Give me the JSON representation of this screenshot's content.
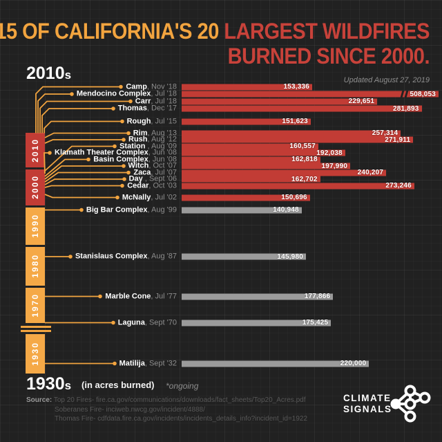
{
  "header": {
    "title_yellow": "15 OF CALIFORNIA'S 20",
    "title_red_line1": "LARGEST WILDFIRES",
    "title_red_line2": "BURNED SINCE 2000.",
    "updated": "Updated August 27, 2019"
  },
  "era": {
    "top": {
      "text": "2010",
      "suffix": "s"
    },
    "bottom": {
      "text": "1930",
      "suffix": "s"
    }
  },
  "axis_note": "(in acres burned)",
  "ongoing_note": "*ongoing",
  "timeline_decades": [
    {
      "label": "2010",
      "color": "#c23c35"
    },
    {
      "label": "2000",
      "color": "#c23c35"
    },
    {
      "label": "1990",
      "color": "#f5a947"
    },
    {
      "label": "1980",
      "color": "#f5a947"
    },
    {
      "label": "1970",
      "color": "#f5a947"
    },
    {
      "label": "1930",
      "color": "#f5a947"
    }
  ],
  "chart_data": {
    "type": "bar",
    "orientation": "horizontal",
    "title": "15 of California's 20 largest wildfires burned since 2000.",
    "unit": "acres burned",
    "legend": {
      "since_2000_color": "#c23c35",
      "before_2000_color": "#9b9b9b",
      "accent_color": "#f2a43f"
    },
    "fires": [
      {
        "name": "Camp",
        "date": "Nov '18",
        "acres": 153336,
        "since_2000": true
      },
      {
        "name": "Mendocino Complex",
        "date": "Jul '18",
        "acres": 508053,
        "since_2000": true,
        "axis_break": true
      },
      {
        "name": "Carr",
        "date": "Jul '18",
        "acres": 229651,
        "since_2000": true
      },
      {
        "name": "Thomas",
        "date": "Dec '17",
        "acres": 281893,
        "since_2000": true
      },
      {
        "name": "Rough",
        "date": "Jul '15",
        "acres": 151623,
        "since_2000": true
      },
      {
        "name": "Rim",
        "date": "Aug '13",
        "acres": 257314,
        "since_2000": true
      },
      {
        "name": "Rush",
        "date": "Aug '12",
        "acres": 271911,
        "since_2000": true
      },
      {
        "name": "Station ",
        "date": "Aug '09",
        "acres": 160557,
        "since_2000": true
      },
      {
        "name": "Klamath Theater Complex",
        "date": "Jun '08",
        "acres": 192038,
        "since_2000": true
      },
      {
        "name": "Basin Complex",
        "date": "Jun '08",
        "acres": 162818,
        "since_2000": true
      },
      {
        "name": "Witch",
        "date": "Oct '07",
        "acres": 197990,
        "since_2000": true
      },
      {
        "name": "Zaca",
        "date": "Jul '07",
        "acres": 240207,
        "since_2000": true
      },
      {
        "name": "Day ",
        "date": "Sept '06",
        "acres": 162702,
        "since_2000": true
      },
      {
        "name": "Cedar",
        "date": "Oct '03",
        "acres": 273246,
        "since_2000": true
      },
      {
        "name": "McNally",
        "date": "Jul '02",
        "acres": 150696,
        "since_2000": true
      },
      {
        "name": "Big Bar Complex",
        "date": "Aug '99",
        "acres": 140948,
        "since_2000": false
      },
      {
        "name": "Stanislaus Complex",
        "date": "Aug '87",
        "acres": 145980,
        "since_2000": false
      },
      {
        "name": "Marble Cone",
        "date": "Jul '77",
        "acres": 177866,
        "since_2000": false
      },
      {
        "name": "Laguna",
        "date": "Sept '70",
        "acres": 175425,
        "since_2000": false
      },
      {
        "name": "Matilija",
        "date": "Sept '32",
        "acres": 220000,
        "since_2000": false
      }
    ]
  },
  "source": {
    "label": "Source:",
    "lines": [
      "Top 20 Fires- fire.ca.gov/communications/downloads/fact_sheets/Top20_Acres.pdf",
      "Soberanes Fire- inciweb.nwcg.gov/incident/4888/",
      "Thomas Fire- cdfdata.fire.ca.gov/incidents/incidents_details_info?incident_id=1922"
    ]
  },
  "logo": {
    "line1": "CLIMATE",
    "line2": "SIGNALS"
  }
}
